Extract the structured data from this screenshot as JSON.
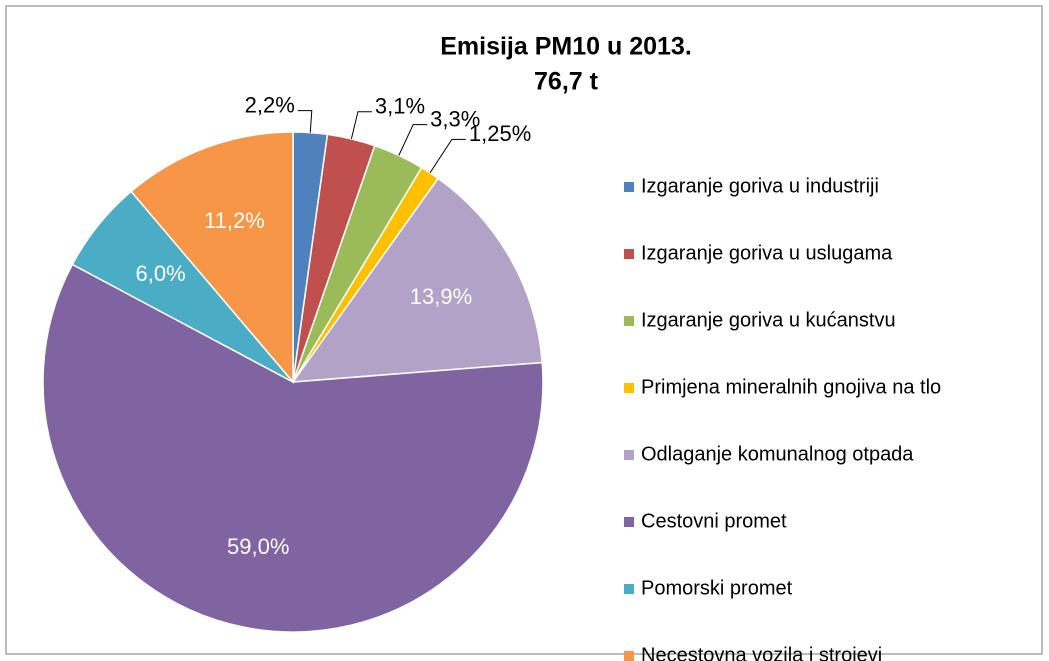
{
  "chart_data": {
    "type": "pie",
    "title": "Emisija PM10 u 2013.",
    "subtitle": "76,7 t",
    "categories": [
      "Izgaranje goriva u industriji",
      "Izgaranje goriva u uslugama",
      "Izgaranje goriva u kućanstvu",
      "Primjena mineralnih gnojiva na tlo",
      "Odlaganje komunalnog otpada",
      "Cestovni promet",
      "Pomorski promet",
      "Necestovna vozila i strojevi"
    ],
    "values": [
      2.2,
      3.1,
      3.3,
      1.25,
      13.9,
      59.0,
      6.0,
      11.2
    ],
    "value_labels": [
      "2,2%",
      "3,1%",
      "3,3%",
      "1,25%",
      "13,9%",
      "59,0%",
      "6,0%",
      "11,2%"
    ],
    "colors": [
      "#4f81bd",
      "#c0504d",
      "#9bbb59",
      "#ffc000",
      "#b3a2c7",
      "#8064a2",
      "#4bacc6",
      "#f79646"
    ],
    "legend": "right"
  }
}
